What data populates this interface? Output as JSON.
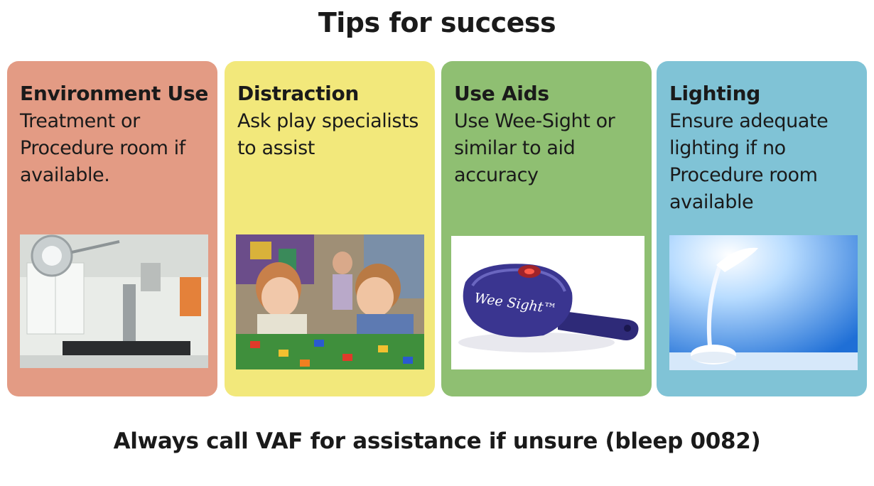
{
  "title": "Tips for success",
  "cards": [
    {
      "heading": "Environment Use",
      "body": "Treatment or Procedure room if available.",
      "color": "#e39b84",
      "image_icon": "operating-room-photo"
    },
    {
      "heading": "Distraction",
      "body": "Ask play specialists to assist",
      "color": "#f2e87b",
      "image_icon": "children-playing-photo"
    },
    {
      "heading": "Use Aids",
      "body": "Use Wee-Sight or similar to aid accuracy",
      "color": "#8fbf72",
      "image_icon": "wee-sight-device-photo",
      "device_label": "Wee Sight™"
    },
    {
      "heading": "Lighting",
      "body": "Ensure adequate lighting if no Procedure room available",
      "color": "#80c3d6",
      "image_icon": "desk-lamp-photo"
    }
  ],
  "footer": "Always call VAF for assistance if unsure (bleep 0082)"
}
